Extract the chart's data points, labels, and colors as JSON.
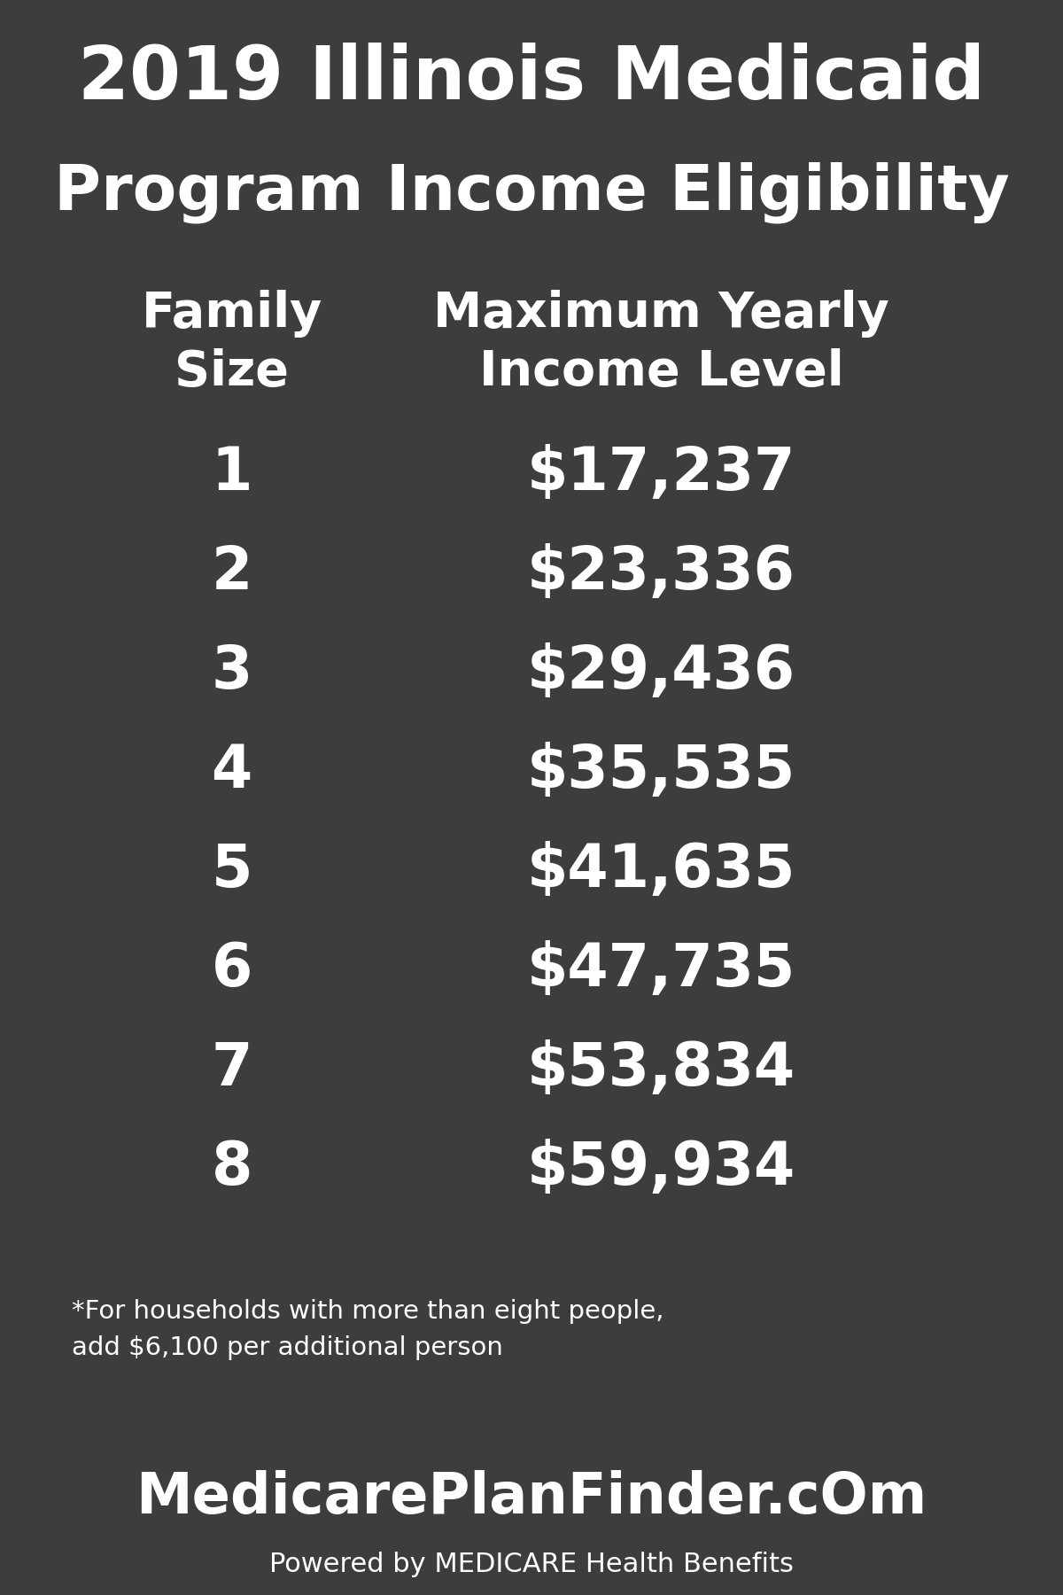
{
  "title_line1": "2019 Illinois Medicaid",
  "title_line2": "Program Income Eligibility",
  "title_bg_color": "#3d3d3d",
  "title_text_color": "#ffffff",
  "header_col1": "Family\nSize",
  "header_col2": "Maximum Yearly\nIncome Level",
  "header_bg_color": "#F5A623",
  "header_text_color": "#ffffff",
  "rows": [
    [
      "1",
      "$17,237"
    ],
    [
      "2",
      "$23,336"
    ],
    [
      "3",
      "$29,436"
    ],
    [
      "4",
      "$35,535"
    ],
    [
      "5",
      "$41,635"
    ],
    [
      "6",
      "$47,735"
    ],
    [
      "7",
      "$53,834"
    ],
    [
      "8",
      "$59,934"
    ]
  ],
  "row_colors": [
    "#2980B9",
    "#6BAED6",
    "#2980B9",
    "#6BAED6",
    "#2980B9",
    "#6BAED6",
    "#2980B9",
    "#6BAED6"
  ],
  "row_text_color": "#ffffff",
  "footnote_line1": "*For households with more than eight people,",
  "footnote_line2": "add $6,100 per additional person",
  "footnote_bg_color": "#7FB3D3",
  "footnote_text_color": "#ffffff",
  "footer_bg_color": "#3d3d3d",
  "footer_text_color": "#ffffff",
  "footer_main": "MedicarePlanFinder.cOm",
  "footer_sub": "Powered by MEDICARE Health Benefits",
  "table_bg_color": "#7FB3D3",
  "border_color": "#F5A623",
  "fig_w": 1200,
  "fig_h": 1800
}
